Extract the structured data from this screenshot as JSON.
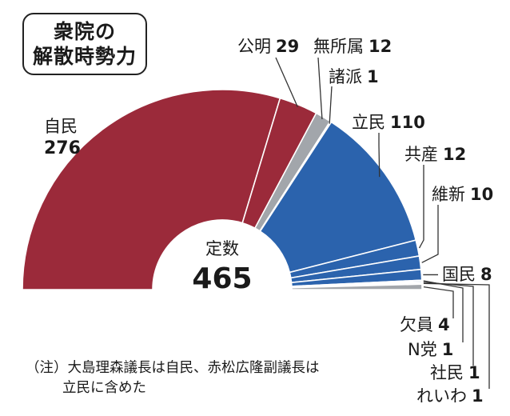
{
  "title": {
    "line1": "衆院の",
    "line2": "解散時勢力"
  },
  "center": {
    "label": "定数",
    "value": "465"
  },
  "note": {
    "line1": "（注）大島理森議長は自民、赤松広隆副議長は",
    "line2": "立民に含めた"
  },
  "colors": {
    "ldp": "#9b2a3a",
    "cdp": "#2b63ad",
    "gray": "#a2a6ab"
  },
  "chart_data": {
    "type": "pie",
    "subtype": "half-donut (parliament seats)",
    "total": 465,
    "slices": [
      {
        "name": "自民",
        "value": 276,
        "color": "ldp"
      },
      {
        "name": "公明",
        "value": 29,
        "color": "ldp"
      },
      {
        "name": "無所属",
        "value": 12,
        "color": "gray"
      },
      {
        "name": "諸派",
        "value": 1,
        "color": "gray"
      },
      {
        "name": "立民",
        "value": 110,
        "color": "cdp"
      },
      {
        "name": "共産",
        "value": 12,
        "color": "cdp"
      },
      {
        "name": "維新",
        "value": 10,
        "color": "cdp"
      },
      {
        "name": "国民",
        "value": 8,
        "color": "cdp"
      },
      {
        "name": "N党",
        "value": 1,
        "color": "cdp"
      },
      {
        "name": "社民",
        "value": 1,
        "color": "cdp"
      },
      {
        "name": "れいわ",
        "value": 1,
        "color": "cdp"
      },
      {
        "name": "欠員",
        "value": 4,
        "color": "gray"
      }
    ]
  }
}
